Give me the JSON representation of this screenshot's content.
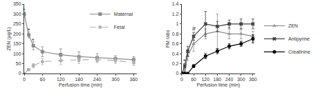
{
  "chart_data": [
    {
      "type": "line",
      "x": [
        0,
        15,
        30,
        60,
        120,
        180,
        240,
        300,
        360
      ],
      "x_label": "Perfusion time (min)",
      "y_label": "ZEN (µg/L)",
      "xlim": [
        0,
        370
      ],
      "xticks": [
        0,
        60,
        120,
        180,
        240,
        300,
        360
      ],
      "ylim": [
        0,
        350
      ],
      "yticks": [
        0,
        50,
        100,
        150,
        200,
        250,
        300,
        350
      ],
      "legend": "top right",
      "series": [
        {
          "name": "Maternal",
          "color": "#8c8c8c",
          "marker": "square",
          "line_style": "solid",
          "values": [
            300,
            195,
            140,
            110,
            95,
            85,
            80,
            75,
            70
          ],
          "errors": [
            10,
            15,
            20,
            25,
            30,
            25,
            20,
            15,
            15
          ]
        },
        {
          "name": "Fetal",
          "color": "#b0b0b0",
          "marker": "circle",
          "line_style": "dash",
          "values": [
            0,
            20,
            40,
            60,
            65,
            70,
            70,
            65,
            55
          ],
          "errors": [
            0,
            5,
            10,
            15,
            20,
            20,
            15,
            15,
            15
          ]
        }
      ],
      "annotations": [
        {
          "x": 0,
          "y": 318,
          "text": "*"
        },
        {
          "x": 15,
          "y": 218,
          "text": "*"
        },
        {
          "x": 30,
          "y": 168,
          "text": "*"
        }
      ]
    },
    {
      "type": "line",
      "x": [
        0,
        15,
        30,
        60,
        120,
        180,
        240,
        300,
        360
      ],
      "x_label": "Perfusion time (min)",
      "y_label": "FM ratio",
      "xlim": [
        0,
        370
      ],
      "xticks": [
        0,
        60,
        120,
        180,
        240,
        300,
        360
      ],
      "ylim": [
        0,
        1.4
      ],
      "yticks": [
        0,
        0.2,
        0.4,
        0.6,
        0.8,
        1,
        1.2,
        1.4
      ],
      "legend": "right",
      "series": [
        {
          "name": "ZEN",
          "color": "#8c8c8c",
          "marker": "triangle-up",
          "line_style": "solid",
          "values": [
            0,
            0.05,
            0.35,
            0.6,
            0.8,
            0.85,
            0.8,
            0.8,
            0.75
          ],
          "errors": [
            0,
            0.03,
            0.08,
            0.15,
            0.1,
            0.35,
            0.1,
            0.1,
            0.1
          ]
        },
        {
          "name": "Antipyrine",
          "color": "#404040",
          "marker": "x",
          "line_style": "solid",
          "values": [
            0,
            0.15,
            0.45,
            0.75,
            1,
            0.95,
            1,
            1,
            1
          ],
          "errors": [
            0,
            0.05,
            0.1,
            0.08,
            0.25,
            0.1,
            0.08,
            0.1,
            0.1
          ]
        },
        {
          "name": "Creatinine",
          "color": "#000000",
          "marker": "circle",
          "line_style": "solid",
          "values": [
            0,
            0,
            0,
            0.15,
            0.35,
            0.45,
            0.55,
            0.6,
            0.7
          ],
          "errors": [
            0,
            0,
            0,
            0.03,
            0.05,
            0.05,
            0.05,
            0.05,
            0.08
          ]
        }
      ],
      "annotations": [
        {
          "x": 15,
          "y": 0.25,
          "text": "*"
        },
        {
          "x": 60,
          "y": 0.9,
          "text": "#"
        }
      ]
    }
  ]
}
